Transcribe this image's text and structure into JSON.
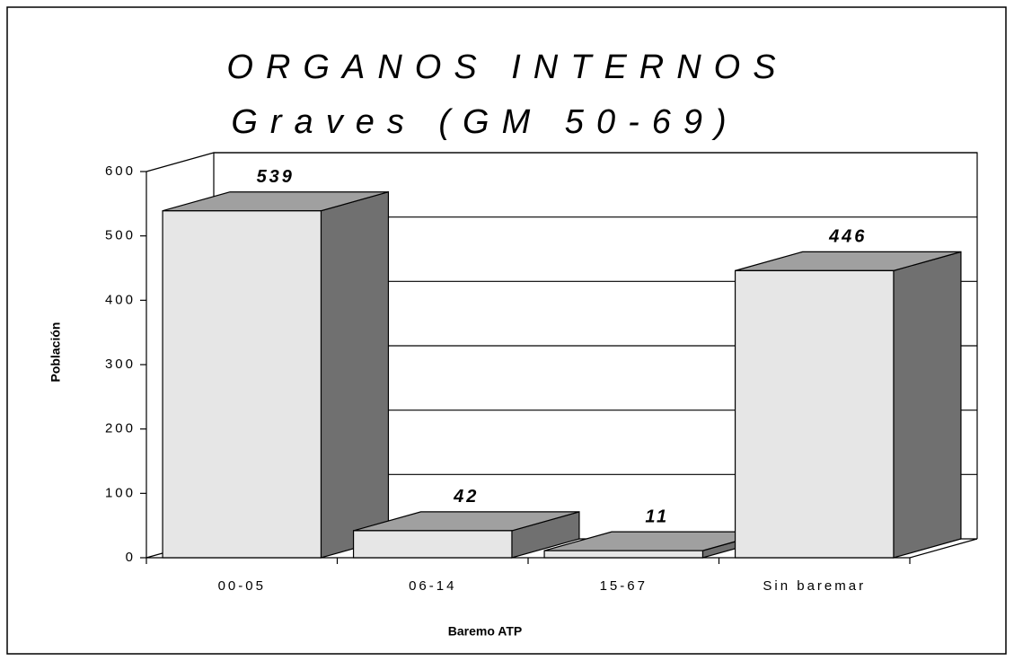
{
  "chart_data": {
    "type": "bar3d",
    "title": "ORGANOS INTERNOS",
    "subtitle": "Graves (GM 50-69)",
    "categories": [
      "00-05",
      "06-14",
      "15-67",
      "Sin baremar"
    ],
    "values": [
      539,
      42,
      11,
      446
    ],
    "colors": {
      "front": "#e6e6e6",
      "top": "#a0a0a0",
      "side": "#707070"
    },
    "ylim": [
      0,
      600
    ],
    "yticks": [
      0,
      100,
      200,
      300,
      400,
      500,
      600
    ],
    "grid": true,
    "y_label": "Población",
    "x_label": "Baremo ATP"
  }
}
